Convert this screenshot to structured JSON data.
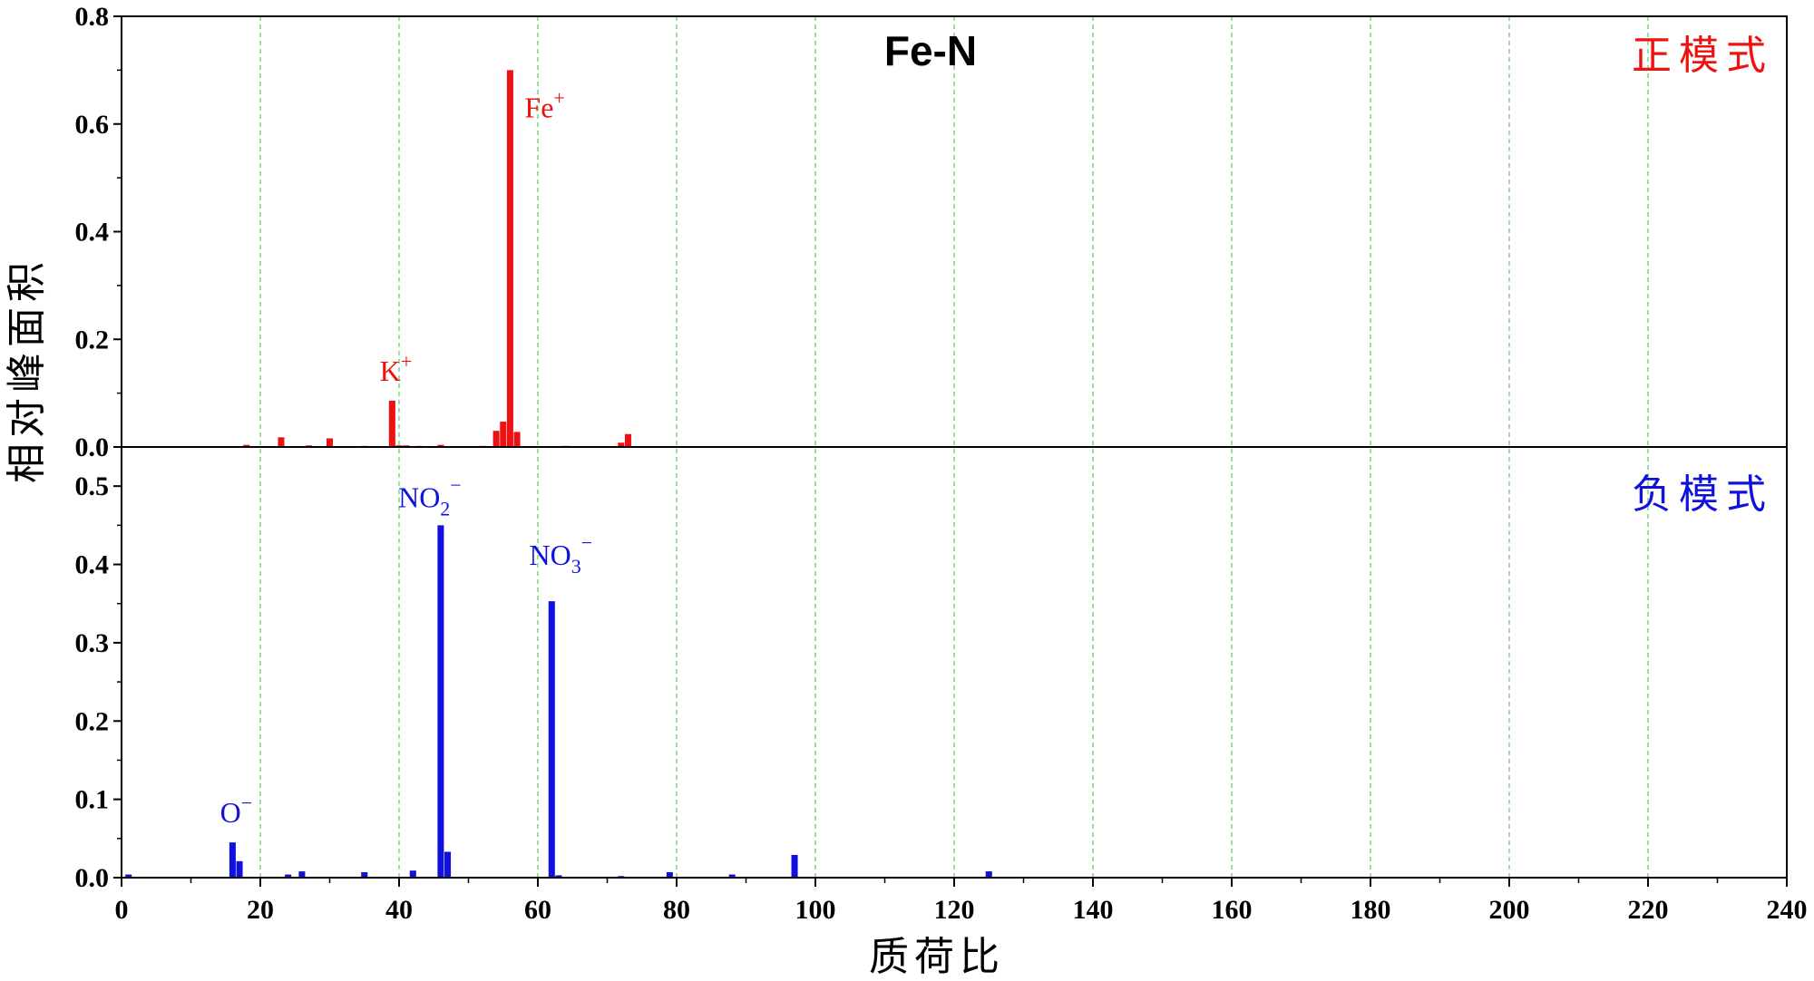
{
  "chart_data": {
    "type": "bar",
    "title": "Fe-N",
    "xlabel": "质荷比",
    "ylabel": "相对峰面积",
    "xlim": [
      0,
      240
    ],
    "x_ticks": [
      0,
      20,
      40,
      60,
      80,
      100,
      120,
      140,
      160,
      180,
      200,
      220,
      240
    ],
    "x_tick_labels": [
      "0",
      "20",
      "40",
      "60",
      "80",
      "100",
      "120",
      "140",
      "160",
      "180",
      "200",
      "220",
      "240"
    ],
    "grid": "vertical dashed green at major x ticks",
    "panels": [
      {
        "name": "正模式",
        "color": "#ee1111",
        "ylim": [
          0,
          0.8
        ],
        "y_ticks": [
          0.0,
          0.2,
          0.4,
          0.6,
          0.8
        ],
        "y_tick_labels": [
          "0.0",
          "0.2",
          "0.4",
          "0.6",
          "0.8"
        ],
        "x": [
          7,
          18,
          23,
          27,
          30,
          35,
          39,
          40,
          41,
          43,
          46,
          52,
          54,
          55,
          56,
          57,
          64,
          72,
          73,
          104,
          208
        ],
        "values": [
          0.001,
          0.004,
          0.018,
          0.003,
          0.016,
          0.002,
          0.086,
          0.003,
          0.003,
          0.002,
          0.004,
          0.002,
          0.03,
          0.047,
          0.7,
          0.028,
          0.002,
          0.008,
          0.024,
          0.001,
          0.001
        ],
        "annotations": [
          {
            "x": 39,
            "y": 0.086,
            "base": "K",
            "sup": "+",
            "sub": ""
          },
          {
            "x": 56,
            "y": 0.7,
            "base": "Fe",
            "sup": "+",
            "sub": ""
          }
        ]
      },
      {
        "name": "负模式",
        "color": "#1111dd",
        "ylim": [
          0,
          0.55
        ],
        "y_ticks": [
          0.0,
          0.1,
          0.2,
          0.3,
          0.4,
          0.5
        ],
        "y_tick_labels": [
          "0.0",
          "0.1",
          "0.2",
          "0.3",
          "0.4",
          "0.5"
        ],
        "x": [
          1,
          16,
          17,
          24,
          26,
          35,
          42,
          46,
          47,
          62,
          63,
          72,
          79,
          88,
          97,
          125
        ],
        "values": [
          0.004,
          0.045,
          0.021,
          0.004,
          0.008,
          0.007,
          0.009,
          0.45,
          0.033,
          0.353,
          0.003,
          0.002,
          0.007,
          0.004,
          0.029,
          0.008
        ],
        "annotations": [
          {
            "x": 16,
            "y": 0.045,
            "base": "O",
            "sup": "−",
            "sub": ""
          },
          {
            "x": 46,
            "y": 0.45,
            "base": "NO",
            "sup": "−",
            "sub": "2"
          },
          {
            "x": 62,
            "y": 0.353,
            "base": "NO",
            "sup": "−",
            "sub": "3"
          }
        ]
      }
    ]
  }
}
